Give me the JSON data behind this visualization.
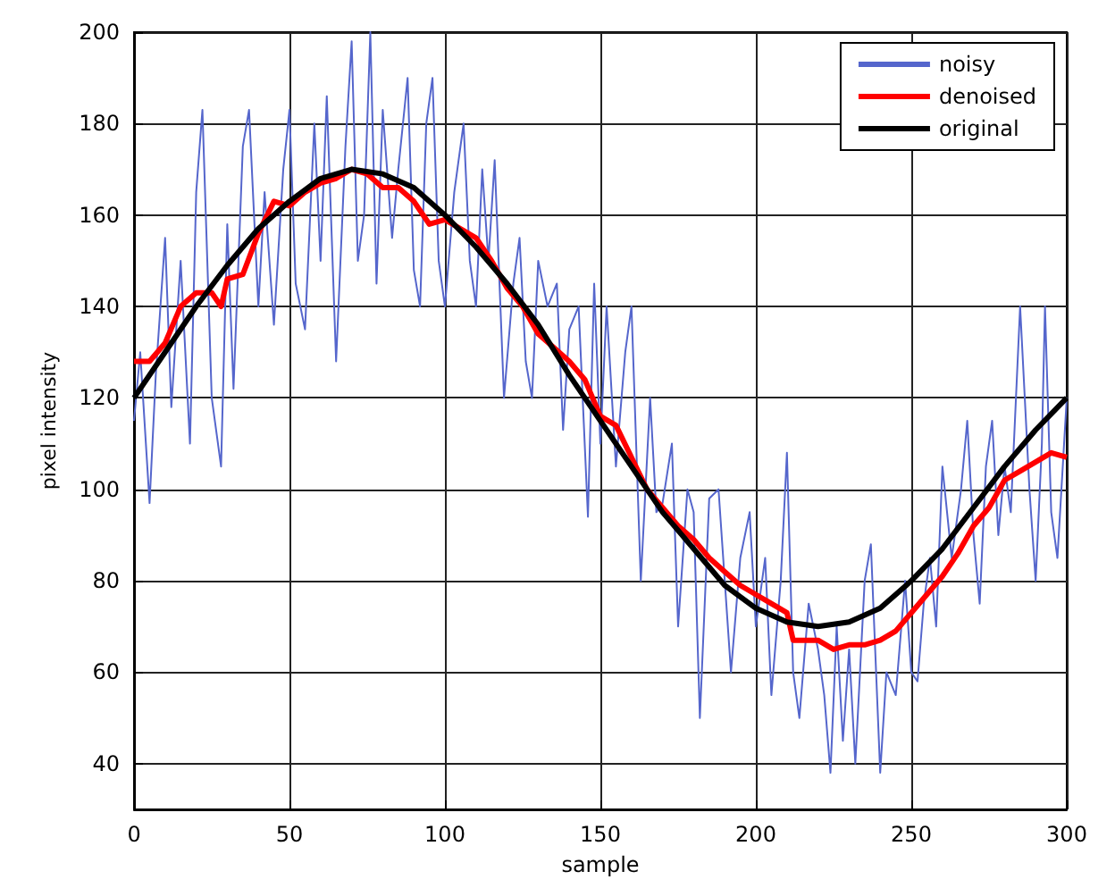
{
  "chart_data": {
    "type": "line",
    "xlabel": "sample",
    "ylabel": "pixel intensity",
    "xlim": [
      0,
      300
    ],
    "ylim": [
      30,
      200
    ],
    "xticks": [
      0,
      50,
      100,
      150,
      200,
      250,
      300
    ],
    "yticks": [
      40,
      60,
      80,
      100,
      120,
      140,
      160,
      180,
      200
    ],
    "grid": true,
    "legend": "top right",
    "marker": "none",
    "line_style": "solid",
    "series": [
      {
        "name": "noisy",
        "color": "#5566cc",
        "x": [
          0,
          2,
          5,
          7,
          10,
          12,
          15,
          18,
          20,
          22,
          25,
          28,
          30,
          32,
          35,
          37,
          40,
          42,
          45,
          48,
          50,
          52,
          55,
          58,
          60,
          62,
          65,
          68,
          70,
          72,
          74,
          76,
          78,
          80,
          83,
          85,
          88,
          90,
          92,
          94,
          96,
          98,
          100,
          103,
          106,
          108,
          110,
          112,
          114,
          116,
          119,
          122,
          124,
          126,
          128,
          130,
          133,
          136,
          138,
          140,
          143,
          146,
          148,
          150,
          152,
          155,
          158,
          160,
          163,
          166,
          168,
          170,
          173,
          175,
          178,
          180,
          182,
          185,
          188,
          190,
          192,
          195,
          198,
          200,
          203,
          205,
          208,
          210,
          212,
          214,
          217,
          220,
          222,
          224,
          226,
          228,
          230,
          232,
          235,
          237,
          240,
          242,
          245,
          248,
          250,
          252,
          254,
          256,
          258,
          260,
          263,
          266,
          268,
          270,
          272,
          274,
          276,
          278,
          280,
          282,
          285,
          288,
          290,
          292,
          293,
          295,
          297,
          300
        ],
        "values": [
          115,
          130,
          97,
          125,
          155,
          118,
          150,
          110,
          165,
          183,
          120,
          105,
          158,
          122,
          175,
          183,
          140,
          165,
          136,
          170,
          183,
          145,
          135,
          180,
          150,
          186,
          128,
          175,
          198,
          150,
          160,
          200,
          145,
          183,
          155,
          170,
          190,
          148,
          140,
          180,
          190,
          150,
          140,
          165,
          180,
          150,
          140,
          170,
          150,
          172,
          120,
          145,
          155,
          128,
          120,
          150,
          140,
          145,
          113,
          135,
          140,
          94,
          145,
          110,
          140,
          105,
          130,
          140,
          80,
          120,
          95,
          97,
          110,
          70,
          100,
          95,
          50,
          98,
          100,
          80,
          60,
          85,
          95,
          70,
          85,
          55,
          80,
          108,
          60,
          50,
          75,
          65,
          55,
          38,
          70,
          45,
          65,
          40,
          80,
          88,
          38,
          60,
          55,
          80,
          60,
          58,
          75,
          85,
          70,
          105,
          85,
          100,
          115,
          90,
          75,
          105,
          115,
          90,
          105,
          95,
          140,
          100,
          80,
          110,
          140,
          95,
          85,
          120
        ]
      },
      {
        "name": "denoised",
        "color": "#ff0000",
        "x": [
          0,
          5,
          10,
          15,
          20,
          25,
          28,
          30,
          35,
          40,
          45,
          50,
          55,
          60,
          65,
          70,
          75,
          80,
          85,
          90,
          95,
          100,
          105,
          110,
          115,
          120,
          125,
          130,
          135,
          140,
          145,
          150,
          155,
          160,
          165,
          170,
          175,
          180,
          185,
          190,
          195,
          200,
          205,
          210,
          212,
          215,
          220,
          225,
          230,
          235,
          240,
          245,
          250,
          255,
          260,
          265,
          270,
          275,
          280,
          285,
          290,
          295,
          300
        ],
        "values": [
          128,
          128,
          132,
          140,
          143,
          143,
          140,
          146,
          147,
          156,
          163,
          162,
          165,
          167,
          168,
          170,
          169,
          166,
          166,
          163,
          158,
          159,
          157,
          155,
          150,
          144,
          140,
          134,
          131,
          128,
          124,
          116,
          114,
          107,
          100,
          96,
          92,
          89,
          85,
          82,
          79,
          77,
          75,
          73,
          67,
          67,
          67,
          65,
          66,
          66,
          67,
          69,
          73,
          77,
          81,
          86,
          92,
          96,
          102,
          104,
          106,
          108,
          107
        ]
      },
      {
        "name": "original",
        "color": "#000000",
        "x": [
          0,
          10,
          20,
          30,
          40,
          50,
          60,
          70,
          80,
          90,
          100,
          110,
          120,
          130,
          140,
          150,
          160,
          170,
          180,
          190,
          200,
          210,
          220,
          230,
          240,
          250,
          260,
          270,
          280,
          290,
          300
        ],
        "values": [
          120,
          130,
          140,
          149,
          157,
          163,
          168,
          170,
          169,
          166,
          160,
          153,
          145,
          136,
          125,
          115,
          105,
          95,
          87,
          79,
          74,
          71,
          70,
          71,
          74,
          80,
          87,
          96,
          105,
          113,
          120
        ]
      }
    ]
  }
}
